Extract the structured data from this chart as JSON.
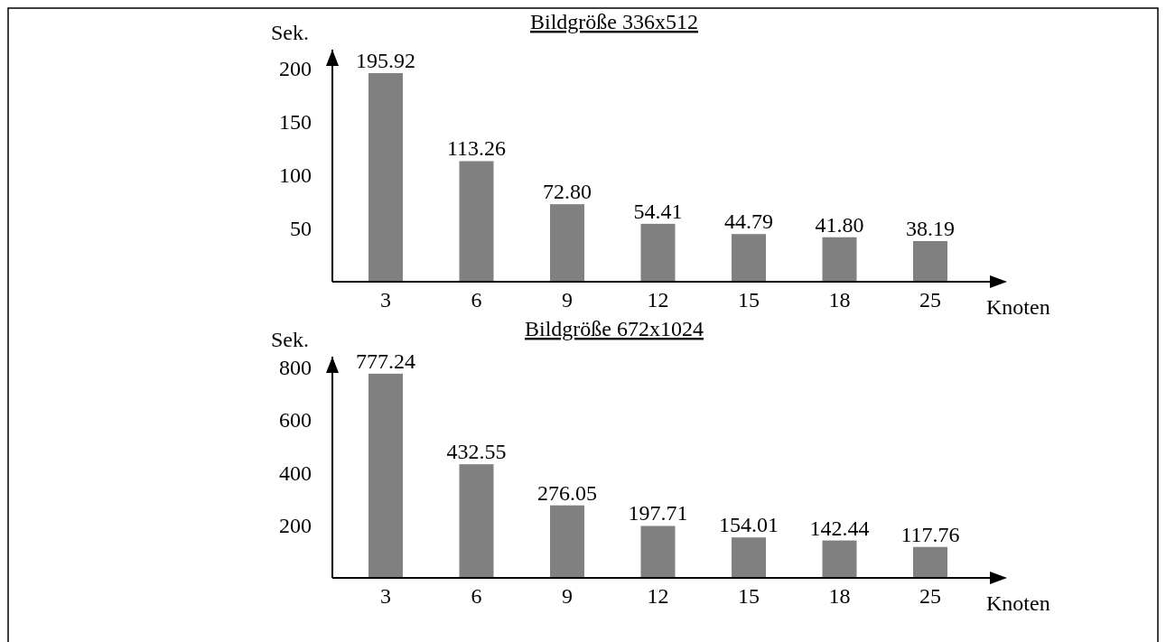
{
  "chart_data": [
    {
      "type": "bar",
      "title": "Bildgröße 336x512",
      "ylabel": "Sek.",
      "xlabel": "Knoten",
      "categories": [
        "3",
        "6",
        "9",
        "12",
        "15",
        "18",
        "25"
      ],
      "values": [
        195.92,
        113.26,
        72.8,
        54.41,
        44.79,
        41.8,
        38.19
      ],
      "value_labels": [
        "195.92",
        "113.26",
        "72.80",
        "54.41",
        "44.79",
        "41.80",
        "38.19"
      ],
      "color": "#808080",
      "ylim": [
        0,
        218
      ],
      "yticks": [
        50,
        100,
        150,
        200
      ]
    },
    {
      "type": "bar",
      "title": "Bildgröße 672x1024",
      "ylabel": "Sek.",
      "xlabel": "Knoten",
      "categories": [
        "3",
        "6",
        "9",
        "12",
        "15",
        "18",
        "25"
      ],
      "values": [
        777.24,
        432.55,
        276.05,
        197.71,
        154.01,
        142.44,
        117.76
      ],
      "value_labels": [
        "777.24",
        "432.55",
        "276.05",
        "197.71",
        "154.01",
        "142.44",
        "117.76"
      ],
      "color": "#808080",
      "ylim": [
        0,
        842
      ],
      "yticks": [
        200,
        400,
        600,
        800
      ]
    }
  ]
}
